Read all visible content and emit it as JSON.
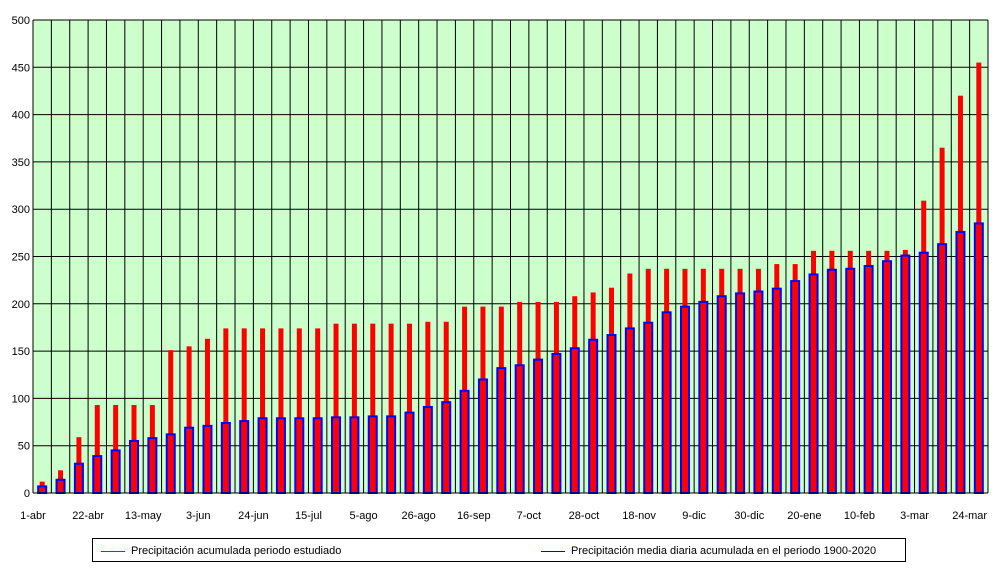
{
  "chart_data": {
    "type": "bar",
    "title": "",
    "xlabel": "",
    "ylabel": "",
    "ylim": [
      0,
      500
    ],
    "yticks": [
      0,
      50,
      100,
      150,
      200,
      250,
      300,
      350,
      400,
      450,
      500
    ],
    "xtick_labels": [
      "1-abr",
      "22-abr",
      "13-may",
      "3-jun",
      "24-jun",
      "15-jul",
      "5-ago",
      "26-ago",
      "16-sep",
      "7-oct",
      "28-oct",
      "18-nov",
      "9-dic",
      "30-dic",
      "20-ene",
      "10-feb",
      "3-mar",
      "24-mar"
    ],
    "xtick_every": 3,
    "grid": true,
    "plot_background": "#ccffcc",
    "legend_position": "bottom",
    "series": [
      {
        "name": "Precipitación acumulada periodo estudiado",
        "color": "#ff0000",
        "values": [
          12,
          24,
          59,
          93,
          93,
          93,
          93,
          151,
          155,
          163,
          174,
          174,
          174,
          174,
          174,
          174,
          179,
          179,
          179,
          179,
          179,
          181,
          181,
          197,
          197,
          197,
          202,
          202,
          202,
          208,
          212,
          217,
          232,
          237,
          237,
          237,
          237,
          237,
          237,
          237,
          242,
          242,
          256,
          256,
          256,
          256,
          256,
          257,
          309,
          365,
          420,
          455
        ]
      },
      {
        "name": "Precipitación media diaria acumulada en el periodo 1900-2020",
        "color": "#0000ff",
        "fill": "#ff0000",
        "values": [
          7,
          14,
          31,
          39,
          45,
          55,
          58,
          62,
          69,
          71,
          74,
          76,
          79,
          79,
          79,
          79,
          80,
          80,
          81,
          81,
          85,
          91,
          96,
          108,
          120,
          132,
          135,
          141,
          147,
          153,
          162,
          167,
          174,
          180,
          191,
          197,
          202,
          208,
          211,
          213,
          216,
          224,
          231,
          236,
          237,
          240,
          245,
          251,
          254,
          263,
          276,
          285
        ]
      }
    ]
  }
}
